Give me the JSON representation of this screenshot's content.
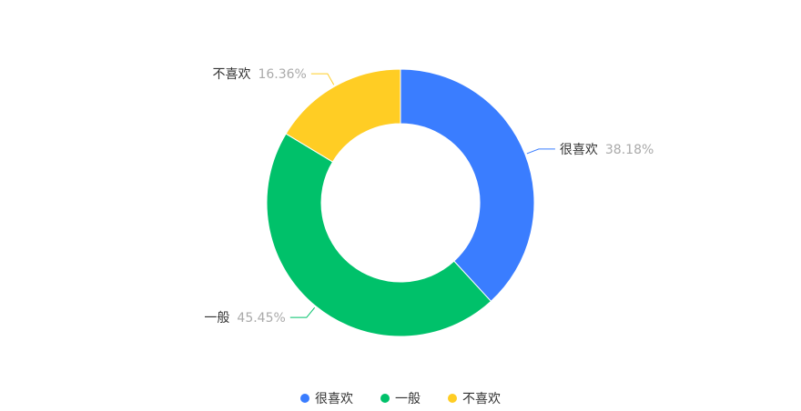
{
  "chart_data": {
    "type": "pie",
    "variant": "donut",
    "categories": [
      "很喜欢",
      "一般",
      "不喜欢"
    ],
    "values": [
      38.18,
      45.45,
      16.36
    ],
    "labels": [
      "很喜欢",
      "一般",
      "不喜欢"
    ],
    "percent_labels": [
      "38.18%",
      "45.45%",
      "16.36%"
    ],
    "colors": [
      "#3a7dff",
      "#00c16a",
      "#ffcd24"
    ],
    "legend": {
      "position": "bottom-center",
      "items": [
        "很喜欢",
        "一般",
        "不喜欢"
      ]
    }
  }
}
